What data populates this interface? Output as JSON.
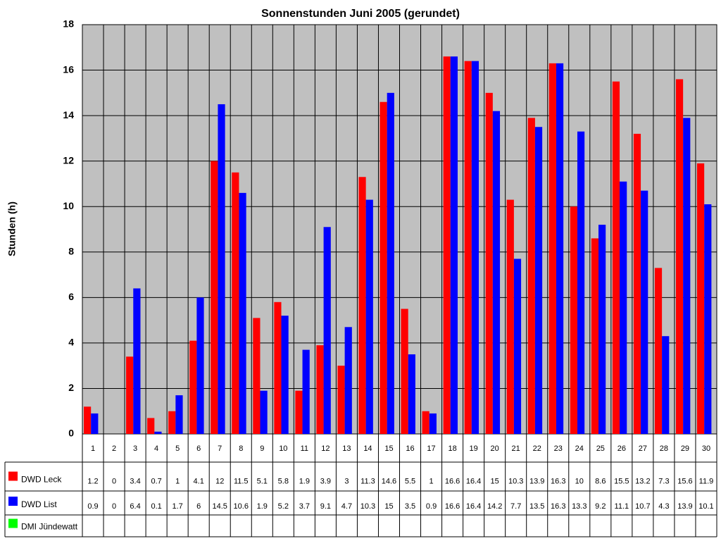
{
  "chart_data": {
    "type": "bar",
    "title": "Sonnenstunden Juni 2005 (gerundet)",
    "y_label": "Stunden (h)",
    "categories": [
      "1",
      "2",
      "3",
      "4",
      "5",
      "6",
      "7",
      "8",
      "9",
      "10",
      "11",
      "12",
      "13",
      "14",
      "15",
      "16",
      "17",
      "18",
      "19",
      "20",
      "21",
      "22",
      "23",
      "24",
      "25",
      "26",
      "27",
      "28",
      "29",
      "30"
    ],
    "series": [
      {
        "name": "DWD Leck",
        "color": "#ff0000",
        "values": [
          1.2,
          0,
          3.4,
          0.7,
          1,
          4.1,
          12,
          11.5,
          5.1,
          5.8,
          1.9,
          3.9,
          3,
          11.3,
          14.6,
          5.5,
          1,
          16.6,
          16.4,
          15,
          10.3,
          13.9,
          16.3,
          10,
          8.6,
          15.5,
          13.2,
          7.3,
          15.6,
          11.9
        ]
      },
      {
        "name": "DWD List",
        "color": "#0000ff",
        "values": [
          0.9,
          0,
          6.4,
          0.1,
          1.7,
          6,
          14.5,
          10.6,
          1.9,
          5.2,
          3.7,
          9.1,
          4.7,
          10.3,
          15,
          3.5,
          0.9,
          16.6,
          16.4,
          14.2,
          7.7,
          13.5,
          16.3,
          13.3,
          9.2,
          11.1,
          10.7,
          4.3,
          13.9,
          10.1
        ]
      },
      {
        "name": "DMI Jündewatt",
        "color": "#00ff00",
        "values": [
          null,
          null,
          null,
          null,
          null,
          null,
          null,
          null,
          null,
          null,
          null,
          null,
          null,
          null,
          null,
          null,
          null,
          null,
          null,
          null,
          null,
          null,
          null,
          null,
          null,
          null,
          null,
          null,
          null,
          null
        ]
      }
    ],
    "ylim": [
      0,
      18
    ],
    "yticks": [
      0,
      2,
      4,
      6,
      8,
      10,
      12,
      14,
      16,
      18
    ],
    "grid": true
  }
}
